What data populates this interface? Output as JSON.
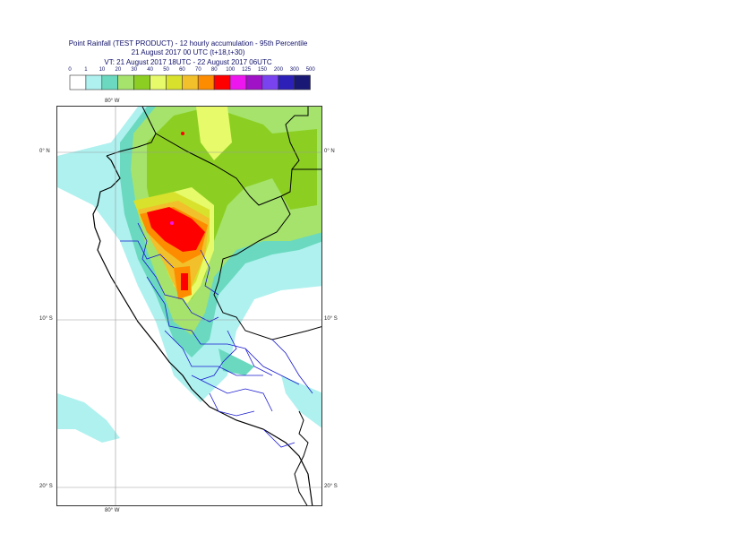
{
  "header": {
    "line1": "Point Rainfall (TEST PRODUCT) - 12 hourly accumulation - 95th Percentile",
    "line2": "21 August 2017 00 UTC (t+18,t+30)",
    "line3": "VT: 21 August 2017 18UTC - 22 August 2017 06UTC"
  },
  "legend": {
    "thresholds": [
      "0",
      "1",
      "10",
      "20",
      "30",
      "40",
      "50",
      "60",
      "70",
      "80",
      "100",
      "125",
      "150",
      "200",
      "300",
      "500"
    ],
    "colors": [
      "#ffffff",
      "#aef1ef",
      "#6ad9bf",
      "#a5e36c",
      "#8ccf22",
      "#e6fa6a",
      "#d8e12c",
      "#f1c02a",
      "#fe8c00",
      "#fe0000",
      "#ee16ee",
      "#9f12c6",
      "#7a43f0",
      "#2c20b8",
      "#191975"
    ]
  },
  "axes": {
    "lon_top": "80° W",
    "lon_bottom": "80° W",
    "lat_left": [
      "0° N",
      "10° S",
      "20° S"
    ],
    "lat_right": [
      "0° N",
      "10° S",
      "20° S"
    ]
  }
}
